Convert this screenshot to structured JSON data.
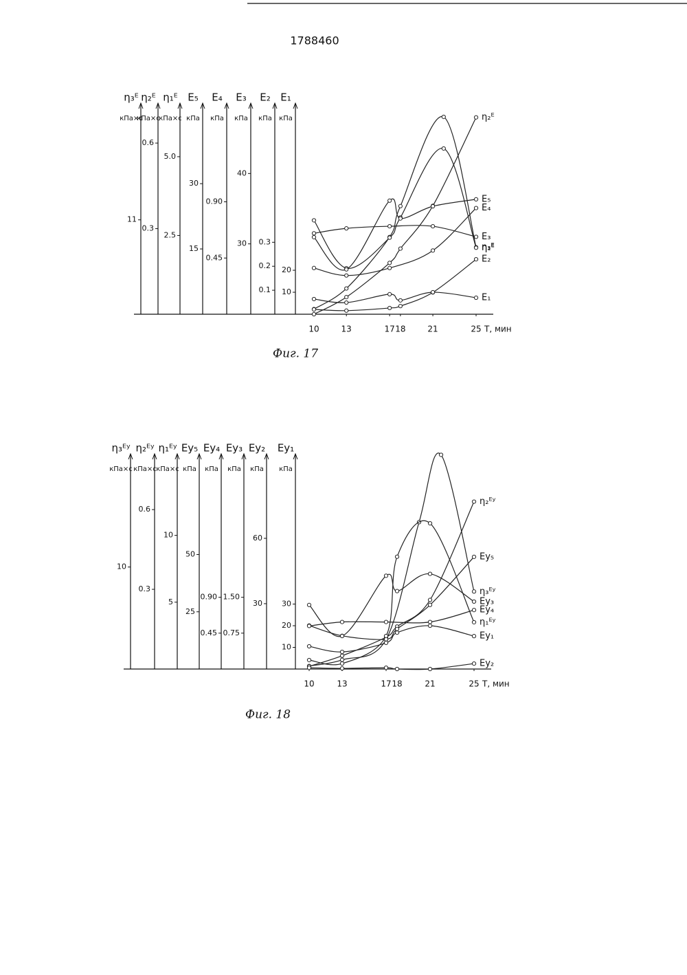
{
  "page_number": "1788460",
  "chart_data": [
    {
      "type": "line",
      "caption": "Фиг. 17",
      "x_label": "Т, мин",
      "xlim": [
        10,
        25
      ],
      "xticks": [
        10,
        13,
        17,
        18,
        21,
        25
      ],
      "axes": [
        {
          "name": "η₃ᴱ",
          "unit": "кПа×с",
          "ylim": [
            0,
            24.6
          ],
          "yticks": [
            11
          ]
        },
        {
          "name": "η₂ᴱ",
          "unit": "кПа×с",
          "ylim": [
            0,
            0.74
          ],
          "yticks": [
            0.6,
            0.3
          ]
        },
        {
          "name": "η₁ᴱ",
          "unit": "кПа×с",
          "ylim": [
            0,
            6.7
          ],
          "yticks": [
            {
              "value": 5,
              "label": "5.0"
            },
            2.5
          ]
        },
        {
          "name": "E₅",
          "unit": "кПа",
          "ylim": [
            0,
            48.5
          ],
          "yticks": [
            30,
            15
          ]
        },
        {
          "name": "E₄",
          "unit": "кПа",
          "ylim": [
            0,
            1.69
          ],
          "yticks": [
            {
              "value": 0.9,
              "label": "0.90"
            },
            0.45
          ]
        },
        {
          "name": "E₃",
          "unit": "кПа",
          "ylim": [
            20,
            50
          ],
          "yticks": [
            40,
            30
          ]
        },
        {
          "name": "E₂",
          "unit": "кПа",
          "ylim": [
            0,
            0.88
          ],
          "yticks": [
            0.3,
            0.2,
            0.1
          ]
        },
        {
          "name": "E₁",
          "unit": "кПа",
          "ylim": [
            0,
            96
          ],
          "yticks": [
            20,
            10
          ]
        }
      ],
      "series": [
        {
          "name": "η₃ᴱ",
          "axis": 0,
          "color": "#222",
          "x": [
            10,
            13,
            17,
            18,
            22,
            25
          ],
          "values": [
            0.6,
            3.0,
            9.0,
            12.6,
            23.0,
            7.8
          ]
        },
        {
          "name": "η₂ᴱ",
          "axis": 1,
          "color": "#222",
          "x": [
            10,
            13,
            17,
            18,
            21,
            25
          ],
          "values": [
            0.0,
            0.06,
            0.18,
            0.23,
            0.38,
            0.69
          ]
        },
        {
          "name": "η₁ᴱ",
          "axis": 2,
          "color": "#222",
          "x": [
            10,
            13,
            17,
            18,
            22,
            25
          ],
          "values": [
            2.98,
            1.46,
            2.43,
            3.07,
            5.26,
            2.11
          ]
        },
        {
          "name": "E₅",
          "axis": 3,
          "color": "#222",
          "x": [
            10,
            13,
            17,
            18,
            21,
            25
          ],
          "values": [
            17.7,
            10.3,
            26.1,
            22.0,
            24.8,
            26.4
          ]
        },
        {
          "name": "E₄",
          "axis": 4,
          "color": "#222",
          "x": [
            10,
            13,
            17,
            21,
            25
          ],
          "values": [
            0.37,
            0.31,
            0.37,
            0.51,
            0.85
          ]
        },
        {
          "name": "E₃",
          "axis": 5,
          "color": "#222",
          "x": [
            10,
            13,
            17,
            21,
            25
          ],
          "values": [
            31.5,
            32.2,
            32.5,
            32.5,
            31.0
          ]
        },
        {
          "name": "E₂",
          "axis": 6,
          "color": "#222",
          "x": [
            10,
            13,
            17,
            18,
            21,
            25
          ],
          "values": [
            0.02,
            0.015,
            0.026,
            0.034,
            0.091,
            0.229
          ]
        },
        {
          "name": "E₁",
          "axis": 7,
          "color": "#222",
          "x": [
            10,
            13,
            17,
            18,
            21,
            25
          ],
          "values": [
            6.9,
            5.3,
            9.1,
            6.3,
            10.0,
            7.5
          ]
        }
      ]
    },
    {
      "type": "line",
      "caption": "Фиг. 18",
      "x_label": "Т, мин",
      "xlim": [
        10,
        25
      ],
      "xticks": [
        10,
        13,
        17,
        18,
        21,
        25
      ],
      "axes": [
        {
          "name": "η₃ᴱʸ",
          "unit": "кПа×с",
          "ylim": [
            0,
            21.1
          ],
          "yticks": [
            10
          ]
        },
        {
          "name": "η₂ᴱʸ",
          "unit": "кПа×с",
          "ylim": [
            0,
            0.81
          ],
          "yticks": [
            0.6,
            0.3
          ]
        },
        {
          "name": "η₁ᴱʸ",
          "unit": "кПа×с",
          "ylim": [
            0,
            16.1
          ],
          "yticks": [
            10,
            5
          ]
        },
        {
          "name": "Eу₅",
          "unit": "кПа",
          "ylim": [
            0,
            94
          ],
          "yticks": [
            50,
            25
          ]
        },
        {
          "name": "Eу₄",
          "unit": "кПа",
          "ylim": [
            0,
            2.7
          ],
          "yticks": [
            {
              "value": 0.9,
              "label": "0.90"
            },
            0.45
          ]
        },
        {
          "name": "Eу₃",
          "unit": "кПа",
          "ylim": [
            0,
            4.5
          ],
          "yticks": [
            {
              "value": 1.5,
              "label": "1.50"
            },
            0.75
          ]
        },
        {
          "name": "Eу₂",
          "unit": "кПа",
          "ylim": [
            0,
            98.8
          ],
          "yticks": [
            60,
            30
          ]
        },
        {
          "name": "Eу₁",
          "unit": "кПа",
          "ylim": [
            0,
            99.4
          ],
          "yticks": [
            30,
            20,
            10
          ]
        }
      ],
      "series": [
        {
          "name": "η₃ᴱʸ",
          "axis": 0,
          "color": "#222",
          "x": [
            10,
            13,
            17,
            20,
            22,
            25
          ],
          "values": [
            0.3,
            0.9,
            2.9,
            14.4,
            21.0,
            7.6
          ]
        },
        {
          "name": "η₂ᴱʸ",
          "axis": 1,
          "color": "#222",
          "x": [
            10,
            13,
            17,
            18,
            21,
            25
          ],
          "values": [
            0.01,
            0.05,
            0.12,
            0.16,
            0.26,
            0.63
          ]
        },
        {
          "name": "η₁ᴱʸ",
          "axis": 2,
          "color": "#222",
          "x": [
            10,
            13,
            17,
            18,
            21,
            25
          ],
          "values": [
            0.67,
            0.41,
            2.47,
            8.4,
            10.9,
            3.5
          ]
        },
        {
          "name": "Eу₅",
          "axis": 3,
          "color": "#222",
          "x": [
            10,
            13,
            17,
            18,
            21,
            25
          ],
          "values": [
            19,
            14.5,
            13,
            17.5,
            28,
            49
          ]
        },
        {
          "name": "Eу₄",
          "axis": 4,
          "color": "#222",
          "x": [
            10,
            13,
            17,
            21,
            25
          ],
          "values": [
            0.54,
            0.59,
            0.59,
            0.59,
            0.74
          ]
        },
        {
          "name": "Eу₃",
          "axis": 5,
          "color": "#222",
          "x": [
            10,
            13,
            17,
            18,
            21,
            25
          ],
          "values": [
            1.34,
            0.69,
            1.95,
            1.63,
            1.99,
            1.41
          ]
        },
        {
          "name": "Eу₂",
          "axis": 6,
          "color": "#222",
          "x": [
            10,
            13,
            17,
            18,
            21,
            25
          ],
          "values": [
            0.6,
            0.3,
            0.6,
            0,
            0,
            2.5
          ]
        },
        {
          "name": "Eу₁",
          "axis": 7,
          "color": "#222",
          "x": [
            10,
            13,
            17,
            18,
            21,
            25
          ],
          "values": [
            10.5,
            7.9,
            12.1,
            16.8,
            20,
            15.2
          ]
        }
      ]
    }
  ]
}
